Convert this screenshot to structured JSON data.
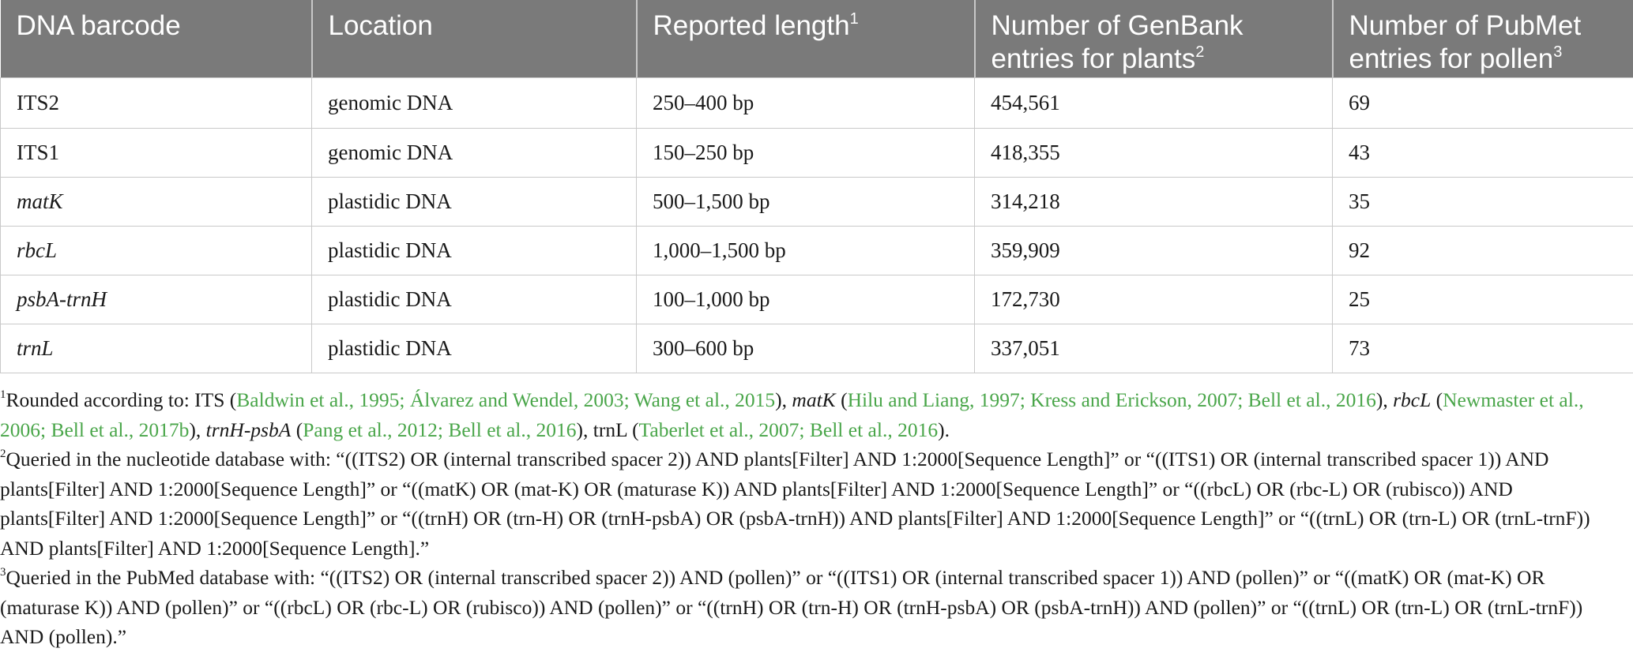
{
  "table": {
    "headers": [
      {
        "label": "DNA barcode",
        "sup": ""
      },
      {
        "label": "Location",
        "sup": ""
      },
      {
        "label": "Reported length",
        "sup": "1"
      },
      {
        "label": "Number of GenBank entries for plants",
        "sup": "2"
      },
      {
        "label": "Number of PubMet entries for pollen",
        "sup": "3"
      }
    ],
    "rows": [
      {
        "barcode": "ITS2",
        "location": "genomic DNA",
        "length": "250–400 bp",
        "genbank": "454,561",
        "pubmet": "69"
      },
      {
        "barcode": "ITS1",
        "location": "genomic DNA",
        "length": "150–250 bp",
        "genbank": "418,355",
        "pubmet": "43"
      },
      {
        "barcode": "matK",
        "location": "plastidic DNA",
        "length": "500–1,500 bp",
        "genbank": "314,218",
        "pubmet": "35"
      },
      {
        "barcode": "rbcL",
        "location": "plastidic DNA",
        "length": "1,000–1,500 bp",
        "genbank": "359,909",
        "pubmet": "92"
      },
      {
        "barcode": "psbA-trnH",
        "location": "plastidic DNA",
        "length": "100–1,000 bp",
        "genbank": "172,730",
        "pubmet": "25"
      },
      {
        "barcode": "trnL",
        "location": "plastidic DNA",
        "length": "300–600 bp",
        "genbank": "337,051",
        "pubmet": "73"
      }
    ]
  },
  "footnotes": {
    "note1": {
      "sup": "1",
      "intro": "Rounded according to: ITS (",
      "its_refs": "Baldwin et al., 1995; Álvarez and Wendel, 2003; Wang et al., 2015",
      "sep1": "), ",
      "matk_label": "matK",
      "open2": " (",
      "matk_refs": "Hilu and Liang, 1997; Kress and Erickson, 2007; Bell et al., 2016",
      "sep2": "), ",
      "rbcl_label": "rbcL",
      "open3": " (",
      "rbcl_refs": "Newmaster et al., 2006; Bell et al., 2017b",
      "sep3": "), ",
      "trnh_label": "trnH-psbA",
      "open4": " (",
      "trnh_refs": "Pang et al., 2012; Bell et al., 2016",
      "sep4": "), trnL (",
      "trnl_refs": "Taberlet et al., 2007; Bell et al., 2016",
      "end": ")."
    },
    "note2": {
      "sup": "2",
      "text": "Queried in the nucleotide database with: “((ITS2) OR (internal transcribed spacer 2)) AND plants[Filter] AND 1:2000[Sequence Length]” or “((ITS1) OR (internal transcribed spacer 1)) AND plants[Filter] AND 1:2000[Sequence Length]” or “((matK) OR (mat-K) OR (maturase K)) AND plants[Filter] AND 1:2000[Sequence Length]” or “((rbcL) OR (rbc-L) OR (rubisco)) AND plants[Filter] AND 1:2000[Sequence Length]” or “((trnH) OR (trn-H) OR (trnH-psbA) OR (psbA-trnH)) AND plants[Filter] AND 1:2000[Sequence Length]” or “((trnL) OR (trn-L) OR (trnL-trnF)) AND plants[Filter] AND 1:2000[Sequence Length].”"
    },
    "note3": {
      "sup": "3",
      "text": "Queried in the PubMed database with: “((ITS2) OR (internal transcribed spacer 2)) AND (pollen)” or “((ITS1) OR (internal transcribed spacer 1)) AND (pollen)” or “((matK) OR (mat-K) OR (maturase K)) AND (pollen)” or “((rbcL) OR (rbc-L) OR (rubisco)) AND (pollen)” or “((trnH) OR (trn-H) OR (trnH-psbA) OR (psbA-trnH)) AND (pollen)” or “((trnL) OR (trn-L) OR (trnL-trnF)) AND (pollen).”"
    }
  },
  "colors": {
    "header_bg": "#7a7a7a",
    "reference_link": "#4aa64a"
  }
}
